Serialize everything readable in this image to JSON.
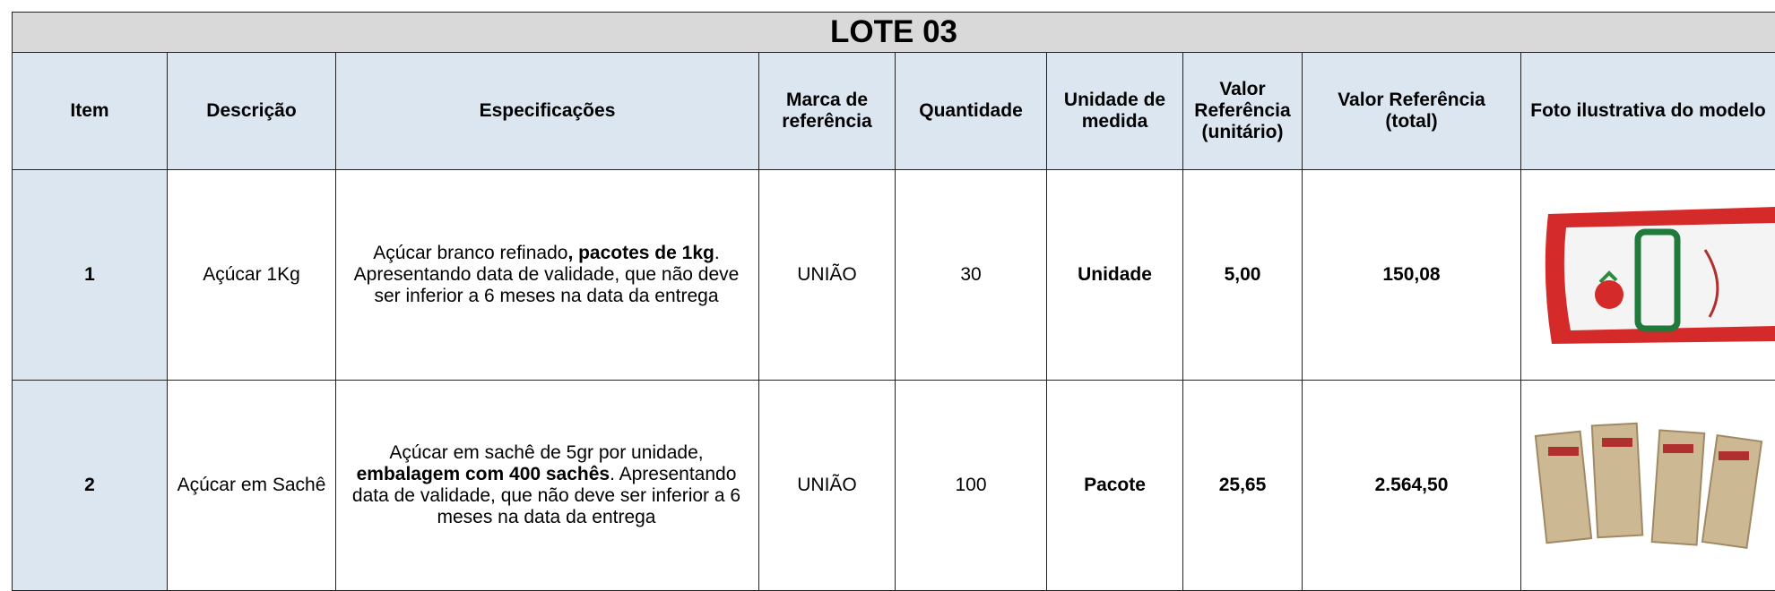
{
  "table": {
    "title": "LOTE 03",
    "header": [
      "Item",
      "Descrição",
      "Especificações",
      "Marca de referência",
      "Quantidade",
      "Unidade de medida",
      "Valor Referência (unitário)",
      "Valor Referência (total)",
      "Foto ilustrativa do modelo"
    ],
    "rows": [
      {
        "item": "1",
        "description": "Açúcar 1Kg",
        "specs": [
          {
            "text": "Açúcar branco refinado",
            "bold": false
          },
          {
            "text": ", pacotes de 1kg",
            "bold": true
          },
          {
            "text": ". Apresentando data de validade, que não deve ser inferior a 6 meses na data da entrega",
            "bold": false
          }
        ],
        "brand": "UNIÃO",
        "quantity": "30",
        "unit": "Unidade",
        "unit_value": "5,00",
        "total_value": "150,08"
      },
      {
        "item": "2",
        "description": "Açúcar em Sachê",
        "specs": [
          {
            "text": "Açúcar em sachê de 5gr por unidade, ",
            "bold": false
          },
          {
            "text": "embalagem com 400 sachês",
            "bold": true
          },
          {
            "text": ". Apresentando data de validade, que não deve ser inferior a 6 meses na data da entrega",
            "bold": false
          }
        ],
        "brand": "UNIÃO",
        "quantity": "100",
        "unit": "Pacote",
        "unit_value": "25,65",
        "total_value": "2.564,50"
      }
    ]
  }
}
